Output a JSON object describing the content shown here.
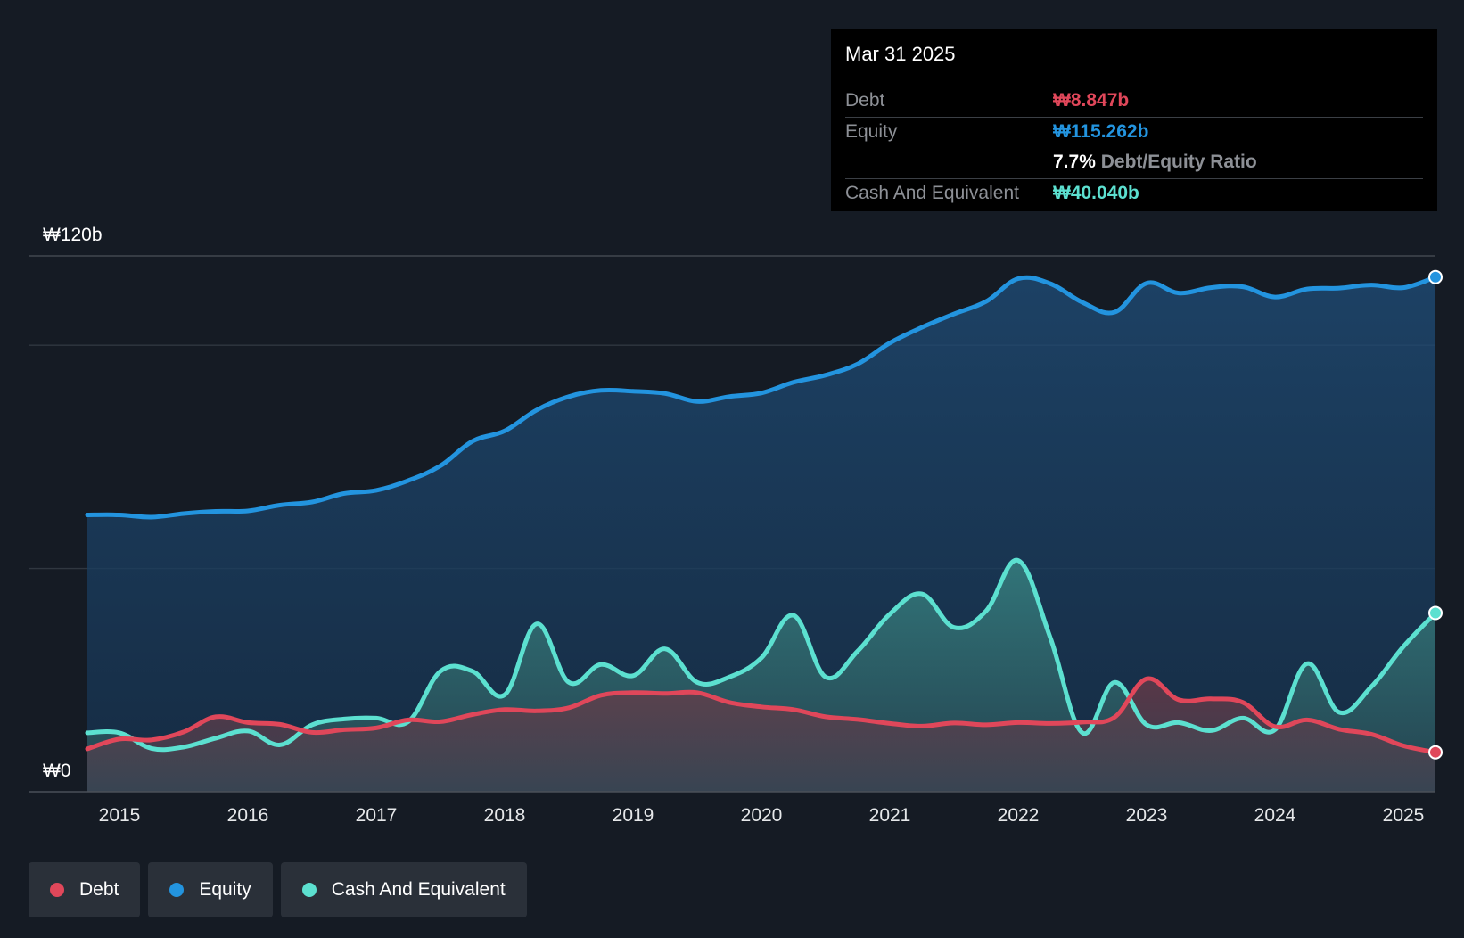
{
  "chart_data": {
    "type": "area",
    "title": "",
    "xlabel": "",
    "ylabel": "",
    "ylim": [
      0,
      120
    ],
    "y_unit": "₩b",
    "y_tick_labels": [
      {
        "value": 120,
        "label": "₩120b"
      },
      {
        "value": 0,
        "label": "₩0"
      }
    ],
    "gridlines": [
      120,
      100,
      50
    ],
    "xlim": [
      2014.7,
      2025.25
    ],
    "x_ticks": [
      2015,
      2016,
      2017,
      2018,
      2019,
      2020,
      2021,
      2022,
      2023,
      2024,
      2025
    ],
    "x_tick_labels": [
      "2015",
      "2016",
      "2017",
      "2018",
      "2019",
      "2020",
      "2021",
      "2022",
      "2023",
      "2024",
      "2025"
    ],
    "series": [
      {
        "name": "Equity",
        "color": "#2394df",
        "points": [
          [
            2014.75,
            62
          ],
          [
            2015,
            62
          ],
          [
            2015.25,
            61.5
          ],
          [
            2015.5,
            62.3
          ],
          [
            2015.75,
            62.8
          ],
          [
            2016,
            62.9
          ],
          [
            2016.25,
            64.2
          ],
          [
            2016.5,
            64.9
          ],
          [
            2016.75,
            66.8
          ],
          [
            2017,
            67.5
          ],
          [
            2017.25,
            69.7
          ],
          [
            2017.5,
            73
          ],
          [
            2017.75,
            78.5
          ],
          [
            2018,
            80.8
          ],
          [
            2018.25,
            85.5
          ],
          [
            2018.5,
            88.5
          ],
          [
            2018.75,
            89.9
          ],
          [
            2019,
            89.7
          ],
          [
            2019.25,
            89.2
          ],
          [
            2019.5,
            87.4
          ],
          [
            2019.75,
            88.5
          ],
          [
            2020,
            89.3
          ],
          [
            2020.25,
            91.7
          ],
          [
            2020.5,
            93.3
          ],
          [
            2020.75,
            95.8
          ],
          [
            2021,
            100.5
          ],
          [
            2021.25,
            104
          ],
          [
            2021.5,
            107
          ],
          [
            2021.75,
            109.8
          ],
          [
            2022,
            114.9
          ],
          [
            2022.25,
            113.8
          ],
          [
            2022.5,
            109.6
          ],
          [
            2022.75,
            107.4
          ],
          [
            2023,
            113.9
          ],
          [
            2023.25,
            111.7
          ],
          [
            2023.5,
            112.9
          ],
          [
            2023.75,
            113.1
          ],
          [
            2024,
            110.8
          ],
          [
            2024.25,
            112.6
          ],
          [
            2024.5,
            112.8
          ],
          [
            2024.75,
            113.5
          ],
          [
            2025,
            112.9
          ],
          [
            2025.25,
            115.262
          ]
        ]
      },
      {
        "name": "Cash And Equivalent",
        "color": "#5ce0d0",
        "points": [
          [
            2014.75,
            13.2
          ],
          [
            2015,
            13.2
          ],
          [
            2015.25,
            9.7
          ],
          [
            2015.5,
            10
          ],
          [
            2015.75,
            12
          ],
          [
            2016,
            13.6
          ],
          [
            2016.25,
            10.5
          ],
          [
            2016.5,
            15
          ],
          [
            2016.75,
            16.3
          ],
          [
            2017,
            16.5
          ],
          [
            2017.25,
            15.7
          ],
          [
            2017.5,
            27
          ],
          [
            2017.75,
            27
          ],
          [
            2018,
            21.7
          ],
          [
            2018.25,
            37.6
          ],
          [
            2018.5,
            24.5
          ],
          [
            2018.75,
            28.5
          ],
          [
            2019,
            26
          ],
          [
            2019.25,
            32
          ],
          [
            2019.5,
            24.5
          ],
          [
            2019.75,
            25.7
          ],
          [
            2020,
            30
          ],
          [
            2020.25,
            39.5
          ],
          [
            2020.5,
            25.7
          ],
          [
            2020.75,
            31.5
          ],
          [
            2021,
            39.8
          ],
          [
            2021.25,
            44.3
          ],
          [
            2021.5,
            36.8
          ],
          [
            2021.75,
            40.5
          ],
          [
            2022,
            51.8
          ],
          [
            2022.25,
            34.5
          ],
          [
            2022.5,
            13.2
          ],
          [
            2022.75,
            24.5
          ],
          [
            2023,
            15
          ],
          [
            2023.25,
            15.5
          ],
          [
            2023.5,
            13.7
          ],
          [
            2023.75,
            16.5
          ],
          [
            2024,
            13.9
          ],
          [
            2024.25,
            28.7
          ],
          [
            2024.5,
            17.8
          ],
          [
            2024.75,
            23.5
          ],
          [
            2025,
            32.5
          ],
          [
            2025.25,
            40.04
          ]
        ]
      },
      {
        "name": "Debt",
        "color": "#e0475a",
        "points": [
          [
            2014.75,
            9.6
          ],
          [
            2015,
            11.8
          ],
          [
            2015.25,
            11.6
          ],
          [
            2015.5,
            13.4
          ],
          [
            2015.75,
            16.8
          ],
          [
            2016,
            15.5
          ],
          [
            2016.25,
            15.1
          ],
          [
            2016.5,
            13.3
          ],
          [
            2016.75,
            13.9
          ],
          [
            2017,
            14.3
          ],
          [
            2017.25,
            16.1
          ],
          [
            2017.5,
            15.7
          ],
          [
            2017.75,
            17.3
          ],
          [
            2018,
            18.4
          ],
          [
            2018.25,
            18.1
          ],
          [
            2018.5,
            18.8
          ],
          [
            2018.75,
            21.6
          ],
          [
            2019,
            22.2
          ],
          [
            2019.25,
            22
          ],
          [
            2019.5,
            22.2
          ],
          [
            2019.75,
            20
          ],
          [
            2020,
            19
          ],
          [
            2020.25,
            18.4
          ],
          [
            2020.5,
            16.8
          ],
          [
            2020.75,
            16.2
          ],
          [
            2021,
            15.3
          ],
          [
            2021.25,
            14.7
          ],
          [
            2021.5,
            15.4
          ],
          [
            2021.75,
            15
          ],
          [
            2022,
            15.5
          ],
          [
            2022.25,
            15.3
          ],
          [
            2022.5,
            15.6
          ],
          [
            2022.75,
            16.7
          ],
          [
            2023,
            25.3
          ],
          [
            2023.25,
            20.6
          ],
          [
            2023.5,
            20.8
          ],
          [
            2023.75,
            20
          ],
          [
            2024,
            14.6
          ],
          [
            2024.25,
            16.1
          ],
          [
            2024.5,
            14
          ],
          [
            2024.75,
            12.9
          ],
          [
            2025,
            10.3
          ],
          [
            2025.25,
            8.847
          ]
        ]
      }
    ],
    "end_markers": true,
    "legend_position": "bottom-left"
  },
  "tooltip": {
    "date": "Mar 31 2025",
    "rows": [
      {
        "label": "Debt",
        "value": "₩8.847b",
        "color": "#e0475a"
      },
      {
        "label": "Equity",
        "value": "₩115.262b",
        "color": "#2394df"
      },
      {
        "ratio_value": "7.7%",
        "ratio_label": "Debt/Equity Ratio"
      },
      {
        "label": "Cash And Equivalent",
        "value": "₩40.040b",
        "color": "#5ce0d0"
      }
    ]
  },
  "legend": {
    "items": [
      {
        "label": "Debt",
        "color": "#e0475a"
      },
      {
        "label": "Equity",
        "color": "#2394df"
      },
      {
        "label": "Cash And Equivalent",
        "color": "#5ce0d0"
      }
    ]
  }
}
